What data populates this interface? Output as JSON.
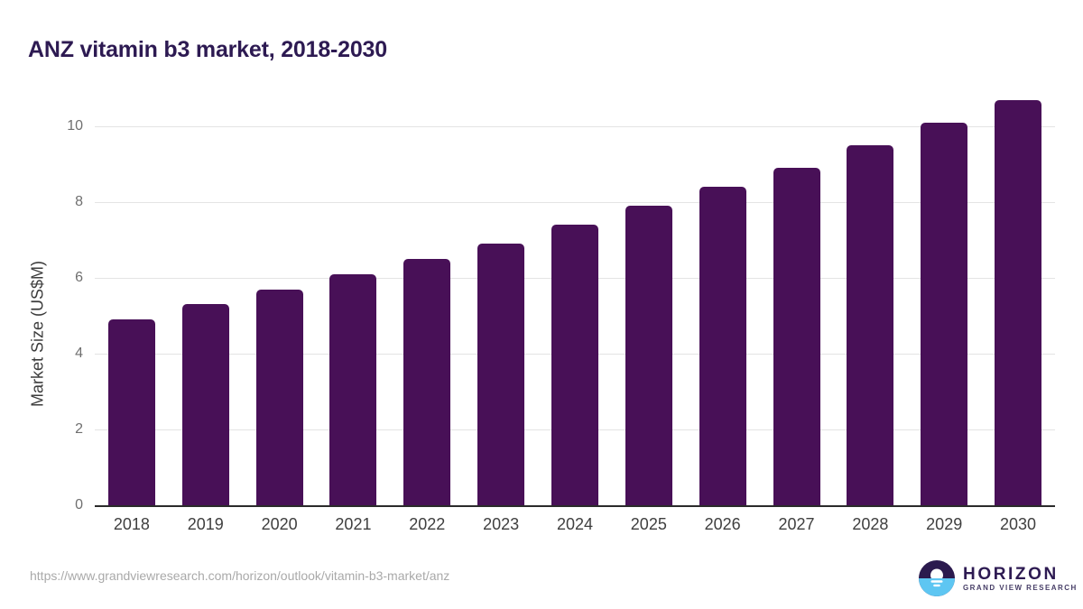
{
  "chart_data": {
    "type": "bar",
    "title": "ANZ vitamin b3 market, 2018-2030",
    "categories": [
      "2018",
      "2019",
      "2020",
      "2021",
      "2022",
      "2023",
      "2024",
      "2025",
      "2026",
      "2027",
      "2028",
      "2029",
      "2030"
    ],
    "values": [
      4.9,
      5.3,
      5.7,
      6.1,
      6.5,
      6.9,
      7.4,
      7.9,
      8.4,
      8.9,
      9.5,
      10.1,
      10.7
    ],
    "xlabel": "",
    "ylabel": "Market Size (US$M)",
    "ylim": [
      0,
      11
    ],
    "yticks": [
      0,
      2,
      4,
      6,
      8,
      10
    ],
    "grid": "horizontal-light",
    "legend": "none",
    "bar_color": "#481057"
  },
  "footer": {
    "source_url": "https://www.grandviewresearch.com/horizon/outlook/vitamin-b3-market/anz",
    "logo_brand": "HORIZON",
    "logo_tagline": "GRAND VIEW RESEARCH"
  },
  "colors": {
    "title_text": "#2d1a52",
    "bar": "#481057",
    "axis_line": "#2b2b2b",
    "gridline": "#e4e4e4",
    "ytick_text": "#6f6f6f",
    "xtick_text": "#3f3f3f",
    "url_text": "#a9a9a9",
    "logo_dark": "#2b1a4e",
    "logo_blue": "#5ec6f2"
  }
}
